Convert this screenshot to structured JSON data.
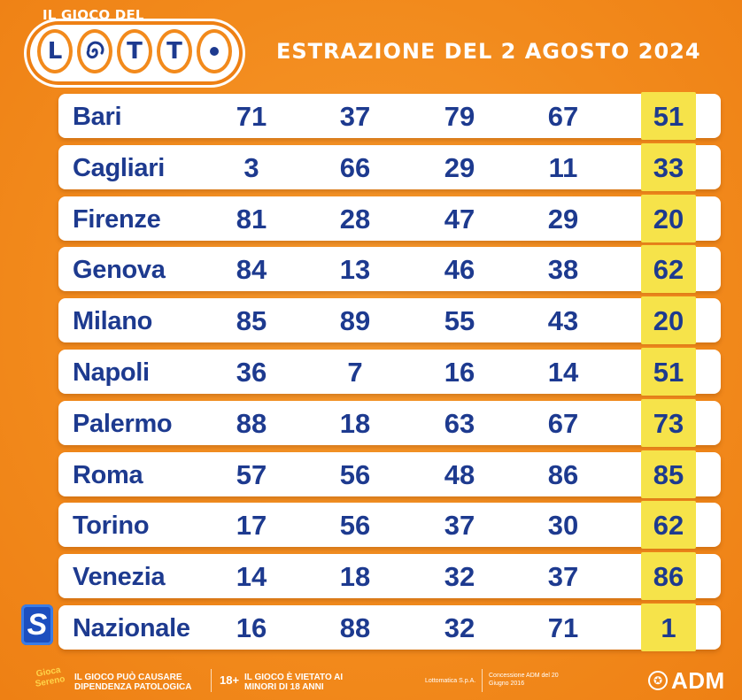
{
  "header": {
    "logo_tagline": "IL GIOCO DEL",
    "logo_letters": [
      "L",
      "",
      "T",
      "T",
      ""
    ],
    "title": "ESTRAZIONE DEL 2 AGOSTO 2024"
  },
  "draws": [
    {
      "city": "Bari",
      "numbers": [
        "71",
        "37",
        "79",
        "67",
        "51"
      ]
    },
    {
      "city": "Cagliari",
      "numbers": [
        "3",
        "66",
        "29",
        "11",
        "33"
      ]
    },
    {
      "city": "Firenze",
      "numbers": [
        "81",
        "28",
        "47",
        "29",
        "20"
      ]
    },
    {
      "city": "Genova",
      "numbers": [
        "84",
        "13",
        "46",
        "38",
        "62"
      ]
    },
    {
      "city": "Milano",
      "numbers": [
        "85",
        "89",
        "55",
        "43",
        "20"
      ]
    },
    {
      "city": "Napoli",
      "numbers": [
        "36",
        "7",
        "16",
        "14",
        "51"
      ]
    },
    {
      "city": "Palermo",
      "numbers": [
        "88",
        "18",
        "63",
        "67",
        "73"
      ]
    },
    {
      "city": "Roma",
      "numbers": [
        "57",
        "56",
        "48",
        "86",
        "85"
      ]
    },
    {
      "city": "Torino",
      "numbers": [
        "17",
        "56",
        "37",
        "30",
        "62"
      ]
    },
    {
      "city": "Venezia",
      "numbers": [
        "14",
        "18",
        "32",
        "37",
        "86"
      ]
    },
    {
      "city": "Nazionale",
      "numbers": [
        "16",
        "88",
        "32",
        "71",
        "1"
      ]
    }
  ],
  "nazionale_badge": "S",
  "footer": {
    "brand_small": "Gioca Sereno",
    "warning_addiction": "IL GIOCO PUÒ CAUSARE DIPENDENZA PATOLOGICA",
    "age_badge": "18+",
    "warning_minors": "IL GIOCO È VIETATO AI MINORI DI 18 ANNI",
    "company": "Lottomatica S.p.A.",
    "concession": "Concessione ADM del 20 Giugno 2016",
    "adm_label": "ADM"
  },
  "colors": {
    "background": "#f28a1c",
    "text_blue": "#1d3a8f",
    "highlight_yellow": "#f6e34a",
    "row_white": "#ffffff"
  }
}
